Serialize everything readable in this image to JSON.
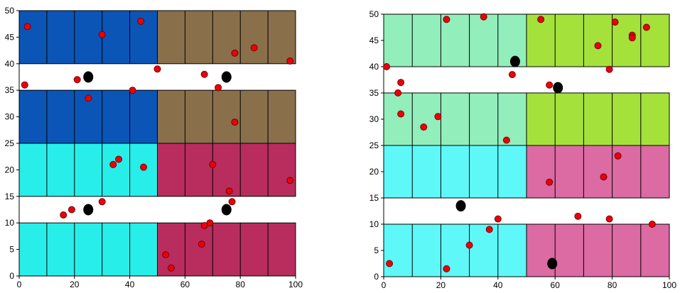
{
  "panels": [
    {
      "name": "left",
      "x_ticks": [
        "0",
        "20",
        "40",
        "60",
        "80",
        "100"
      ],
      "y_ticks": [
        "0",
        "5",
        "10",
        "15",
        "20",
        "25",
        "30",
        "35",
        "40",
        "45",
        "50"
      ],
      "blocks": [
        {
          "x": [
            0,
            50
          ],
          "y": [
            40,
            50
          ],
          "color": "#0b55b7"
        },
        {
          "x": [
            50,
            100
          ],
          "y": [
            40,
            50
          ],
          "color": "#8a6f4b"
        },
        {
          "x": [
            0,
            50
          ],
          "y": [
            25,
            35
          ],
          "color": "#0b55b7"
        },
        {
          "x": [
            50,
            100
          ],
          "y": [
            25,
            35
          ],
          "color": "#8a6f4b"
        },
        {
          "x": [
            0,
            50
          ],
          "y": [
            15,
            25
          ],
          "color": "#28eeea"
        },
        {
          "x": [
            50,
            100
          ],
          "y": [
            15,
            25
          ],
          "color": "#b82d5d"
        },
        {
          "x": [
            0,
            50
          ],
          "y": [
            0,
            10
          ],
          "color": "#28eeea"
        },
        {
          "x": [
            50,
            100
          ],
          "y": [
            0,
            10
          ],
          "color": "#b82d5d"
        }
      ],
      "red_points": [
        [
          3,
          47
        ],
        [
          30,
          45.5
        ],
        [
          44,
          48
        ],
        [
          78,
          42
        ],
        [
          85,
          43
        ],
        [
          98,
          40.5
        ],
        [
          50,
          39
        ],
        [
          2,
          36
        ],
        [
          21,
          37
        ],
        [
          67,
          38
        ],
        [
          72,
          35.5
        ],
        [
          41,
          35
        ],
        [
          25,
          33.5
        ],
        [
          78,
          29
        ],
        [
          36,
          22
        ],
        [
          34,
          21
        ],
        [
          45,
          20.5
        ],
        [
          70,
          21
        ],
        [
          98,
          18
        ],
        [
          76,
          16
        ],
        [
          30,
          14
        ],
        [
          77,
          14
        ],
        [
          19,
          12.5
        ],
        [
          16,
          11.5
        ],
        [
          69,
          10
        ],
        [
          67,
          9.5
        ],
        [
          66,
          6
        ],
        [
          53,
          4
        ],
        [
          55,
          1.5
        ]
      ],
      "black_points": [
        [
          25,
          37.5
        ],
        [
          75,
          37.5
        ],
        [
          25,
          12.5
        ],
        [
          75,
          12.5
        ]
      ]
    },
    {
      "name": "right",
      "x_ticks": [
        "0",
        "20",
        "40",
        "60",
        "80",
        "100"
      ],
      "y_ticks": [
        "0",
        "5",
        "10",
        "15",
        "20",
        "25",
        "30",
        "35",
        "40",
        "45",
        "50"
      ],
      "blocks": [
        {
          "x": [
            0,
            50
          ],
          "y": [
            40,
            50
          ],
          "color": "#92eebb"
        },
        {
          "x": [
            50,
            100
          ],
          "y": [
            40,
            50
          ],
          "color": "#a4e23b"
        },
        {
          "x": [
            0,
            50
          ],
          "y": [
            25,
            35
          ],
          "color": "#92eebb"
        },
        {
          "x": [
            50,
            100
          ],
          "y": [
            25,
            35
          ],
          "color": "#a4e23b"
        },
        {
          "x": [
            0,
            50
          ],
          "y": [
            15,
            25
          ],
          "color": "#5ef8f8"
        },
        {
          "x": [
            50,
            100
          ],
          "y": [
            15,
            25
          ],
          "color": "#dc6aa3"
        },
        {
          "x": [
            0,
            50
          ],
          "y": [
            0,
            10
          ],
          "color": "#5ef8f8"
        },
        {
          "x": [
            50,
            100
          ],
          "y": [
            0,
            10
          ],
          "color": "#dc6aa3"
        }
      ],
      "red_points": [
        [
          22,
          49
        ],
        [
          35,
          49.5
        ],
        [
          55,
          49
        ],
        [
          81,
          48.5
        ],
        [
          92,
          47.5
        ],
        [
          87,
          46
        ],
        [
          87,
          45.5
        ],
        [
          75,
          44
        ],
        [
          1,
          40
        ],
        [
          45,
          38.5
        ],
        [
          79,
          39.5
        ],
        [
          6,
          37
        ],
        [
          5,
          35
        ],
        [
          58,
          36.5
        ],
        [
          6,
          31
        ],
        [
          19,
          30.5
        ],
        [
          14,
          28.5
        ],
        [
          43,
          26
        ],
        [
          82,
          23
        ],
        [
          77,
          19
        ],
        [
          58,
          18
        ],
        [
          40,
          11
        ],
        [
          68,
          11.5
        ],
        [
          79,
          11
        ],
        [
          94,
          10
        ],
        [
          37,
          9
        ],
        [
          30,
          6
        ],
        [
          2,
          2.5
        ],
        [
          22,
          1.5
        ]
      ],
      "black_points": [
        [
          46,
          41
        ],
        [
          61,
          36
        ],
        [
          27,
          13.5
        ],
        [
          59,
          2.5
        ]
      ]
    }
  ]
}
